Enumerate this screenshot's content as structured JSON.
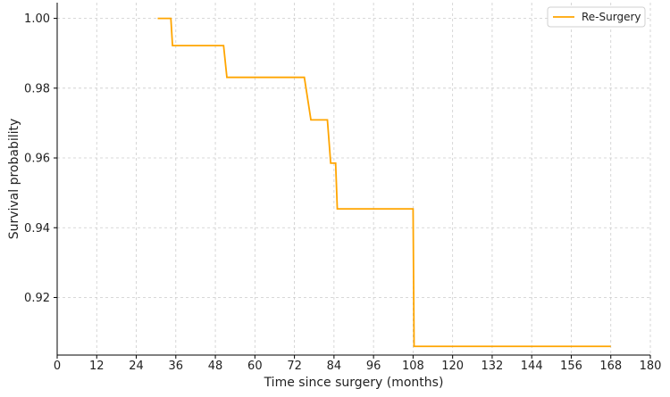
{
  "chart_data": {
    "type": "line",
    "title": "",
    "xlabel": "Time since surgery (months)",
    "ylabel": "Survival probability",
    "xlim": [
      0,
      180
    ],
    "ylim": [
      0.9035,
      1.0045
    ],
    "x_ticks": [
      0,
      12,
      24,
      36,
      48,
      60,
      72,
      84,
      96,
      108,
      120,
      132,
      144,
      156,
      168,
      180
    ],
    "x_tick_labels": [
      "0",
      "12",
      "24",
      "36",
      "48",
      "60",
      "72",
      "84",
      "96",
      "108",
      "120",
      "132",
      "144",
      "156",
      "168",
      "180"
    ],
    "y_ticks": [
      0.92,
      0.94,
      0.96,
      0.98,
      1.0
    ],
    "y_tick_labels": [
      "0.92",
      "0.94",
      "0.96",
      "0.98",
      "1.00"
    ],
    "grid": true,
    "legend_position": "top-right",
    "series": [
      {
        "name": "Re-Surgery",
        "color": "#FFA500",
        "points": [
          [
            30.5,
            1.0
          ],
          [
            34.5,
            1.0
          ],
          [
            35.0,
            0.9922
          ],
          [
            50.5,
            0.9922
          ],
          [
            51.5,
            0.9831
          ],
          [
            75.0,
            0.9831
          ],
          [
            77.0,
            0.9709
          ],
          [
            82.0,
            0.9709
          ],
          [
            83.0,
            0.9585
          ],
          [
            84.5,
            0.9585
          ],
          [
            85.0,
            0.9454
          ],
          [
            108.0,
            0.9454
          ],
          [
            108.3,
            0.906
          ],
          [
            168.0,
            0.906
          ]
        ]
      }
    ]
  }
}
